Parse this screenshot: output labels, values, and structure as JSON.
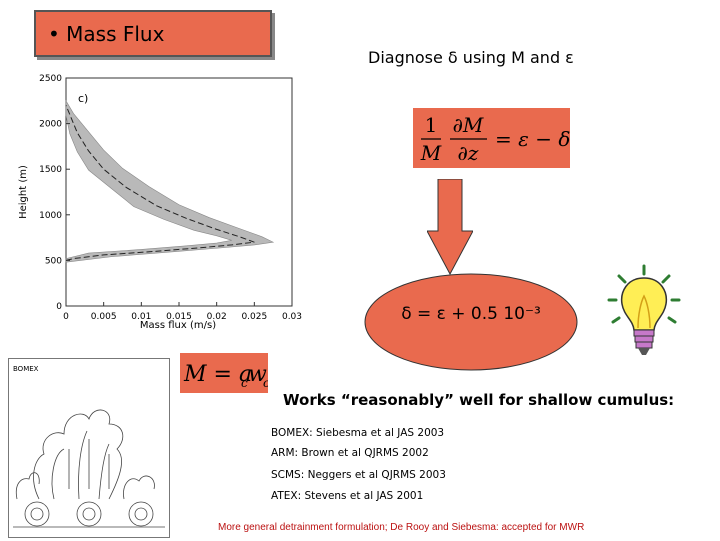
{
  "title": "• Mass Flux",
  "subtitle": "Diagnose δ using M and ε",
  "equation_top": {
    "lhs_num": "1",
    "lhs_den": "M",
    "partial_num": "∂M",
    "partial_den": "∂z",
    "rhs": "= ε − δ"
  },
  "equation_left": {
    "text": "M = a",
    "sub1": "c",
    "mid": "w",
    "sub2": "c"
  },
  "ellipse_formula": "δ = ε + 0.5 10⁻³",
  "works_text": "Works “reasonably” well for shallow cumulus:",
  "references": [
    "BOMEX: Siebesma et al JAS 2003",
    "ARM: Brown et al QJRMS 2002",
    "SCMS: Neggers et al QJRMS 2003",
    "ATEX: Stevens et al JAS 2001"
  ],
  "footer": "More general detrainment formulation; De Rooy and Siebesma: accepted for MWR",
  "inset_label": "BOMEX",
  "chart_data": {
    "type": "line",
    "panel_label": "c)",
    "xlabel": "Mass flux (m/s)",
    "ylabel": "Height (m)",
    "xlim": [
      0,
      0.03
    ],
    "ylim": [
      0,
      2500
    ],
    "x_ticks": [
      "0",
      "0.005",
      "0.01",
      "0.015",
      "0.02",
      "0.025",
      "0.03"
    ],
    "y_ticks": [
      "0",
      "500",
      "1000",
      "1500",
      "2000",
      "2500"
    ],
    "series": [
      {
        "values": [
          [
            0.0,
            500
          ],
          [
            0.001,
            520
          ],
          [
            0.005,
            560
          ],
          [
            0.012,
            600
          ],
          [
            0.018,
            640
          ],
          [
            0.022,
            670
          ],
          [
            0.025,
            700
          ],
          [
            0.023,
            760
          ],
          [
            0.02,
            840
          ],
          [
            0.016,
            960
          ],
          [
            0.012,
            1100
          ],
          [
            0.008,
            1300
          ],
          [
            0.005,
            1500
          ],
          [
            0.003,
            1700
          ],
          [
            0.0015,
            1900
          ],
          [
            0.0005,
            2100
          ],
          [
            0.0,
            2200
          ]
        ]
      }
    ],
    "band": {
      "upper": [
        [
          0.0,
          480
        ],
        [
          0.006,
          540
        ],
        [
          0.015,
          600
        ],
        [
          0.021,
          640
        ],
        [
          0.025,
          670
        ],
        [
          0.0275,
          700
        ],
        [
          0.026,
          760
        ],
        [
          0.023,
          850
        ],
        [
          0.019,
          970
        ],
        [
          0.015,
          1110
        ],
        [
          0.011,
          1310
        ],
        [
          0.0075,
          1510
        ],
        [
          0.005,
          1710
        ],
        [
          0.003,
          1910
        ],
        [
          0.001,
          2110
        ],
        [
          0.0,
          2250
        ]
      ],
      "lower": [
        [
          0.0,
          520
        ],
        [
          0.003,
          580
        ],
        [
          0.01,
          620
        ],
        [
          0.016,
          660
        ],
        [
          0.02,
          690
        ],
        [
          0.022,
          720
        ],
        [
          0.02,
          770
        ],
        [
          0.017,
          830
        ],
        [
          0.013,
          950
        ],
        [
          0.009,
          1090
        ],
        [
          0.006,
          1290
        ],
        [
          0.003,
          1490
        ],
        [
          0.0015,
          1690
        ],
        [
          0.0005,
          1890
        ],
        [
          0.0,
          2090
        ],
        [
          0.0,
          2150
        ]
      ]
    }
  }
}
